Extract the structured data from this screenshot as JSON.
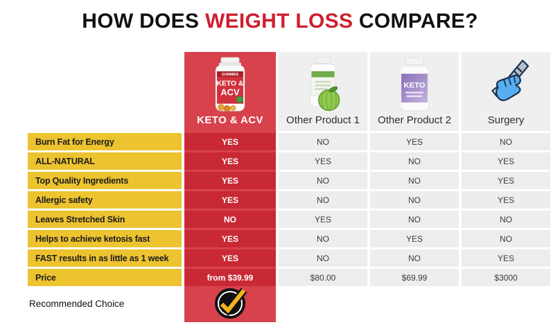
{
  "title": {
    "prefix": "HOW DOES",
    "highlight": "WEIGHT LOSS",
    "suffix": "COMPARE?"
  },
  "chart_data": {
    "type": "table",
    "title": "HOW DOES WEIGHT LOSS COMPARE?",
    "columns": [
      "KETO & ACV",
      "Other Product 1",
      "Other Product 2",
      "Surgery"
    ],
    "highlighted_column": "KETO & ACV",
    "rows": [
      {
        "label": "Burn Fat for Energy",
        "values": [
          "YES",
          "NO",
          "YES",
          "NO"
        ]
      },
      {
        "label": "ALL-NATURAL",
        "values": [
          "YES",
          "YES",
          "NO",
          "YES"
        ]
      },
      {
        "label": "Top Quality Ingredients",
        "values": [
          "YES",
          "NO",
          "NO",
          "YES"
        ]
      },
      {
        "label": "Allergic safety",
        "values": [
          "YES",
          "NO",
          "NO",
          "YES"
        ]
      },
      {
        "label": "Leaves Stretched Skin",
        "values": [
          "NO",
          "YES",
          "NO",
          "NO"
        ]
      },
      {
        "label": "Helps to achieve ketosis fast",
        "values": [
          "YES",
          "NO",
          "YES",
          "NO"
        ]
      },
      {
        "label": "FAST results in as little as 1 week",
        "values": [
          "YES",
          "NO",
          "NO",
          "YES"
        ]
      },
      {
        "label": "Price",
        "values": [
          "from $39.99",
          "$80.00",
          "$69.99",
          "$3000"
        ]
      }
    ],
    "grid": false,
    "legend_position": "none"
  },
  "bottle_texts": {
    "keto": {
      "band": "GUMMIES",
      "line1": "KETO &",
      "line2": "ACV"
    },
    "product2": {
      "line1": "KETO"
    }
  },
  "icons": {
    "keto_image": "keto-acv-gummies-bottle",
    "product1_image": "green-garcinia-supplement-bottle",
    "product2_image": "purple-keto-supplement-bottle",
    "surgery_image": "hand-holding-scalpel-icon",
    "recommended_icon": "gold-checkmark-in-black-circle"
  },
  "footer": {
    "recommended_label": "Recommended Choice"
  },
  "colors": {
    "accent_red": "#d0313d",
    "column_red": "#d7424c",
    "cell_red": "#c92935",
    "accent_yellow": "#edc32f",
    "column_gray": "#efefef",
    "title_red": "#cf1f2e"
  }
}
